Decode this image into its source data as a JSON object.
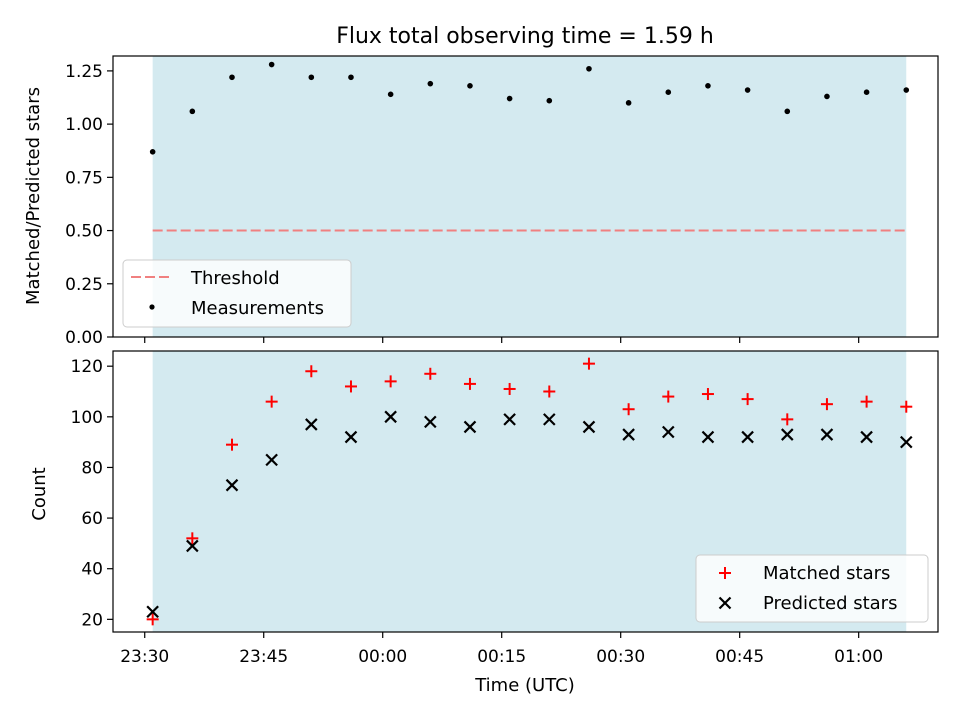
{
  "chart_data": {
    "title": "Flux total observing time = 1.59 h",
    "xlabel": "Time (UTC)",
    "x_ticks": [
      {
        "minutes": 0,
        "label": "23:30"
      },
      {
        "minutes": 15,
        "label": "23:45"
      },
      {
        "minutes": 30,
        "label": "00:00"
      },
      {
        "minutes": 45,
        "label": "00:15"
      },
      {
        "minutes": 60,
        "label": "00:30"
      },
      {
        "minutes": 75,
        "label": "00:45"
      },
      {
        "minutes": 90,
        "label": "01:00"
      }
    ],
    "xlim_minutes": [
      -4,
      100
    ],
    "shaded_span_minutes": [
      1,
      96
    ],
    "times_minutes": [
      1,
      6,
      11,
      16,
      21,
      26,
      31,
      36,
      41,
      46,
      51,
      56,
      61,
      66,
      71,
      76,
      81,
      86,
      91,
      96
    ],
    "top": {
      "type": "scatter",
      "ylabel": "Matched/Predicted stars",
      "ylim": [
        0,
        1.32
      ],
      "yticks": [
        "0.00",
        "0.25",
        "0.50",
        "0.75",
        "1.00",
        "1.25"
      ],
      "threshold": 0.5,
      "measurements": [
        0.87,
        1.06,
        1.22,
        1.28,
        1.22,
        1.22,
        1.14,
        1.19,
        1.18,
        1.12,
        1.11,
        1.26,
        1.1,
        1.15,
        1.18,
        1.16,
        1.06,
        1.13,
        1.15,
        1.16
      ],
      "legend": {
        "threshold_label": "Threshold",
        "measurements_label": "Measurements",
        "position": "lower-left"
      }
    },
    "bottom": {
      "type": "scatter",
      "ylabel": "Count",
      "ylim": [
        15,
        126
      ],
      "yticks": [
        "20",
        "40",
        "60",
        "80",
        "100",
        "120"
      ],
      "series": [
        {
          "name": "Matched stars",
          "marker": "plus",
          "color": "#ff0000",
          "values": [
            20,
            52,
            89,
            106,
            118,
            112,
            114,
            117,
            113,
            111,
            110,
            121,
            103,
            108,
            109,
            107,
            99,
            105,
            106,
            104
          ]
        },
        {
          "name": "Predicted stars",
          "marker": "x",
          "color": "#000000",
          "values": [
            23,
            49,
            73,
            83,
            97,
            92,
            100,
            98,
            96,
            99,
            99,
            96,
            93,
            94,
            92,
            92,
            93,
            93,
            92,
            90
          ]
        }
      ],
      "legend": {
        "position": "lower-right"
      }
    }
  },
  "colors": {
    "span": "#d4eaf0",
    "threshold": "#f08080",
    "matched": "#ff0000",
    "predicted": "#000000"
  }
}
